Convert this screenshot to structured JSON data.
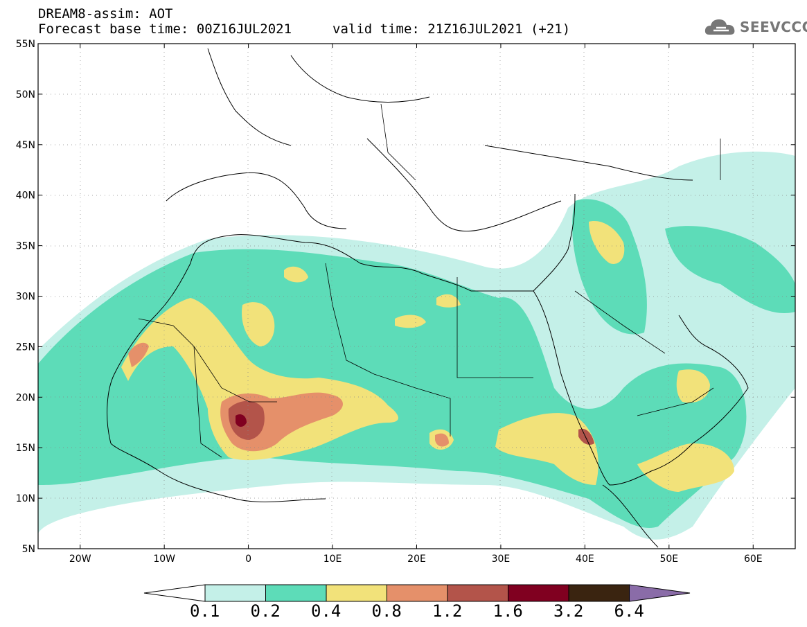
{
  "header": {
    "title": "DREAM8-assim: AOT",
    "base_time": "Forecast base time: 00Z16JUL2021",
    "valid_time": "valid time: 21Z16JUL2021 (+21)"
  },
  "logo": {
    "text": "SEEVCCC",
    "icon": "cloud-icon",
    "color": "#777777"
  },
  "map": {
    "lat_labels": [
      "55N",
      "50N",
      "45N",
      "40N",
      "35N",
      "30N",
      "25N",
      "20N",
      "15N",
      "10N",
      "5N"
    ],
    "lon_labels": [
      "20W",
      "10W",
      "0",
      "10E",
      "20E",
      "30E",
      "40E",
      "50E",
      "60E"
    ],
    "lat_range": [
      5,
      55
    ],
    "lon_range": [
      -25,
      65
    ]
  },
  "colorbar": {
    "labels": [
      "0.1",
      "0.2",
      "0.4",
      "0.8",
      "1.2",
      "1.6",
      "3.2",
      "6.4"
    ],
    "colors": [
      "#c4f0e8",
      "#5ddcb8",
      "#f2e27a",
      "#e5906a",
      "#b3544a",
      "#800020",
      "#3a2410",
      "#8a6ca8"
    ],
    "under_color": "#ffffff"
  }
}
